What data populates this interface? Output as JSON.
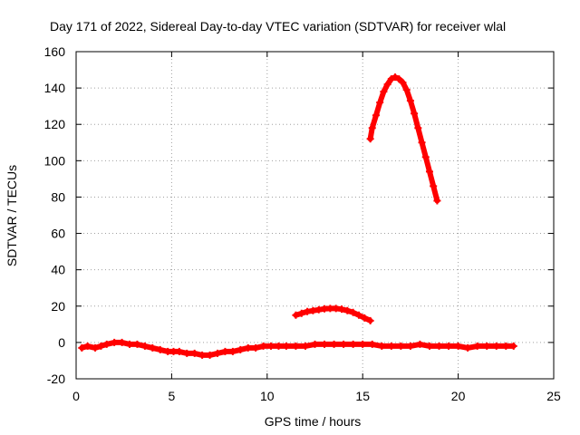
{
  "chart_data": {
    "type": "scatter",
    "title": "Day 171 of 2022, Sidereal Day-to-day VTEC variation (SDTVAR) for receiver wlal",
    "xlabel": "GPS time / hours",
    "ylabel": "SDTVAR / TECUs",
    "xlim": [
      0,
      25
    ],
    "ylim": [
      -20,
      160
    ],
    "xticks": [
      0,
      5,
      10,
      15,
      20,
      25
    ],
    "yticks": [
      -20,
      0,
      20,
      40,
      60,
      80,
      100,
      120,
      140,
      160
    ],
    "xtick_labels": [
      "0",
      "5",
      "10",
      "15",
      "20",
      "25"
    ],
    "ytick_labels": [
      "-20",
      "0",
      "20",
      "40",
      "60",
      "80",
      "100",
      "120",
      "140",
      "160"
    ],
    "grid": true,
    "marker": "plus",
    "color": "#ff0000",
    "series": [
      {
        "name": "baseline",
        "points": [
          [
            0.3,
            -3
          ],
          [
            0.6,
            -2
          ],
          [
            1.0,
            -3
          ],
          [
            1.3,
            -2
          ],
          [
            1.6,
            -1
          ],
          [
            2.0,
            0
          ],
          [
            2.4,
            0
          ],
          [
            2.8,
            -1
          ],
          [
            3.2,
            -1
          ],
          [
            3.6,
            -2
          ],
          [
            4.0,
            -3
          ],
          [
            4.4,
            -4
          ],
          [
            4.8,
            -5
          ],
          [
            5.1,
            -5
          ],
          [
            5.4,
            -5
          ],
          [
            5.8,
            -6
          ],
          [
            6.2,
            -6
          ],
          [
            6.6,
            -7
          ],
          [
            7.0,
            -7
          ],
          [
            7.4,
            -6
          ],
          [
            7.8,
            -5
          ],
          [
            8.2,
            -5
          ],
          [
            8.6,
            -4
          ],
          [
            9.0,
            -3
          ],
          [
            9.4,
            -3
          ],
          [
            9.8,
            -2
          ],
          [
            10.2,
            -2
          ],
          [
            10.6,
            -2
          ],
          [
            11.0,
            -2
          ],
          [
            11.5,
            -2
          ],
          [
            12.0,
            -2
          ],
          [
            12.5,
            -1
          ],
          [
            13.0,
            -1
          ],
          [
            13.5,
            -1
          ],
          [
            14.0,
            -1
          ],
          [
            14.5,
            -1
          ],
          [
            15.0,
            -1
          ],
          [
            15.5,
            -1
          ],
          [
            16.0,
            -2
          ],
          [
            16.5,
            -2
          ],
          [
            17.0,
            -2
          ],
          [
            17.5,
            -2
          ],
          [
            18.0,
            -1
          ],
          [
            18.5,
            -2
          ],
          [
            19.0,
            -2
          ],
          [
            19.5,
            -2
          ],
          [
            20.0,
            -2
          ],
          [
            20.5,
            -3
          ],
          [
            21.0,
            -2
          ],
          [
            21.5,
            -2
          ],
          [
            22.0,
            -2
          ],
          [
            22.5,
            -2
          ],
          [
            22.9,
            -2
          ]
        ]
      },
      {
        "name": "arc-low",
        "points": [
          [
            11.5,
            15
          ],
          [
            11.8,
            16
          ],
          [
            12.1,
            17
          ],
          [
            12.4,
            17.5
          ],
          [
            12.7,
            18
          ],
          [
            13.0,
            18.5
          ],
          [
            13.3,
            18.7
          ],
          [
            13.6,
            18.7
          ],
          [
            13.9,
            18.3
          ],
          [
            14.2,
            17.5
          ],
          [
            14.5,
            16.5
          ],
          [
            14.8,
            15
          ],
          [
            15.1,
            13.5
          ],
          [
            15.4,
            12
          ]
        ]
      },
      {
        "name": "arc-high",
        "points": [
          [
            15.4,
            112
          ],
          [
            15.5,
            118
          ],
          [
            15.7,
            125
          ],
          [
            15.9,
            132
          ],
          [
            16.1,
            138
          ],
          [
            16.3,
            142
          ],
          [
            16.5,
            145
          ],
          [
            16.7,
            146
          ],
          [
            16.9,
            145
          ],
          [
            17.1,
            143
          ],
          [
            17.3,
            139
          ],
          [
            17.5,
            133
          ],
          [
            17.7,
            126
          ],
          [
            17.9,
            118
          ],
          [
            18.1,
            110
          ],
          [
            18.3,
            102
          ],
          [
            18.5,
            94
          ],
          [
            18.7,
            86
          ],
          [
            18.9,
            78
          ]
        ]
      }
    ]
  }
}
